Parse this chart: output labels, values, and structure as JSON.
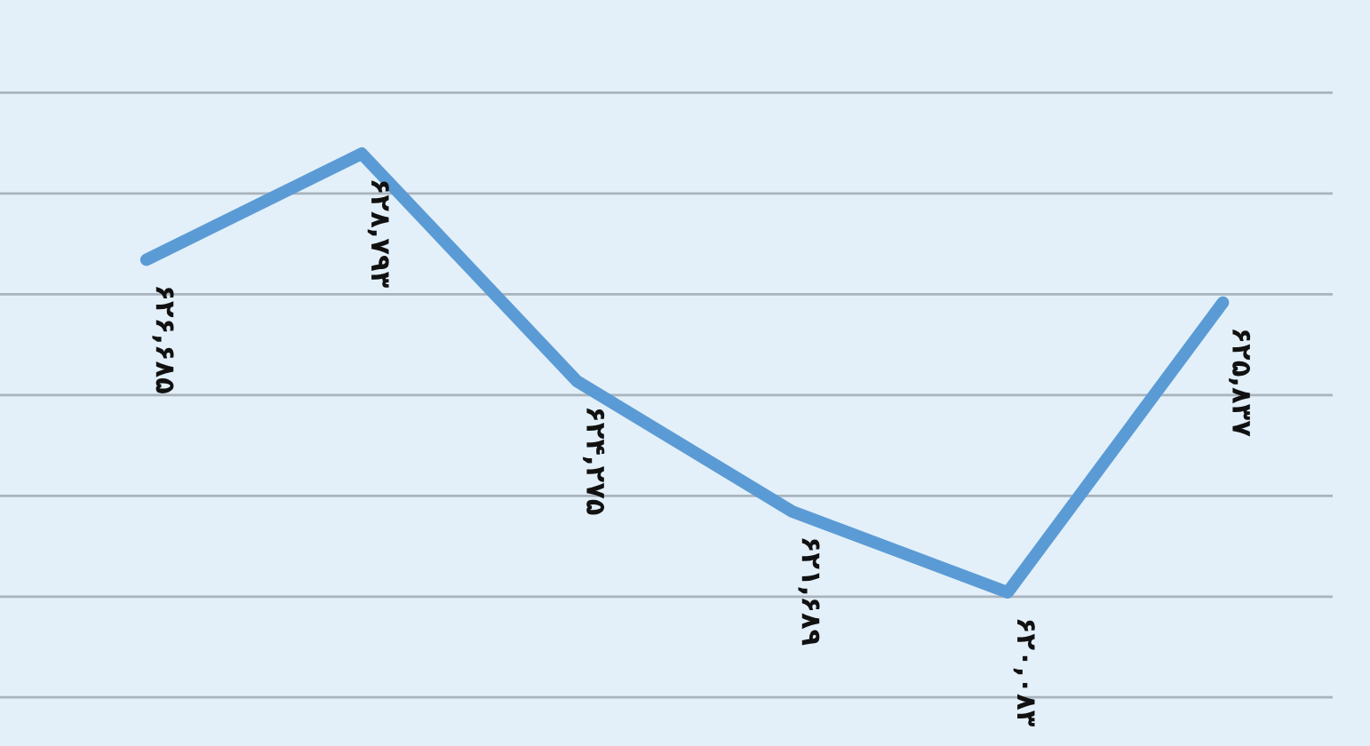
{
  "chart_data": {
    "type": "line",
    "categories": [
      null,
      null,
      null,
      null,
      null,
      null
    ],
    "series": [
      {
        "color": "#5b9bd5",
        "values": [
          626685,
          628793,
          624275,
          621689,
          620083,
          625837
        ],
        "value_labels": [
          "۶۲۶,۶۸۵",
          "۶۲۸,۷۹۳",
          "۶۲۴,۲۷۵",
          "۶۲۱,۶۸۹",
          "۶۲۰,۰۸۳",
          "۶۲۵,۸۳۷"
        ]
      }
    ],
    "grid": "y",
    "tick_labels": false,
    "marker": "none",
    "line_style": "solid",
    "legend": false
  }
}
